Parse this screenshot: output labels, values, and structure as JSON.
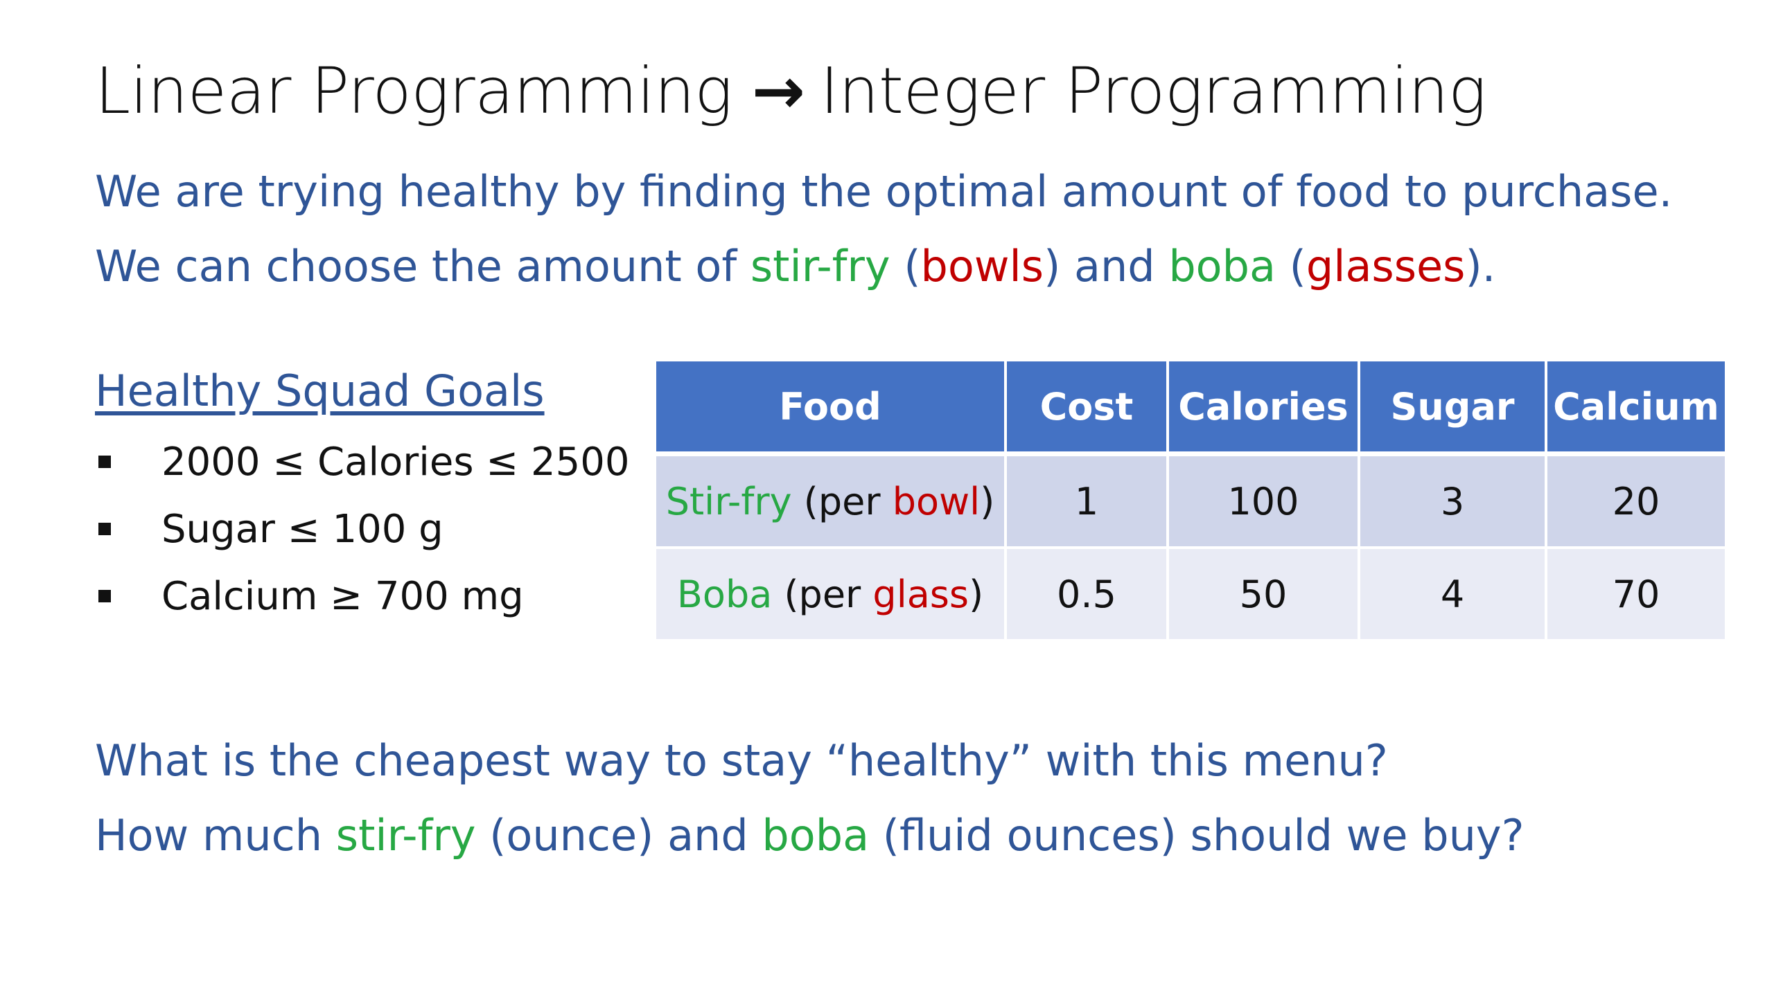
{
  "slide": {
    "title": {
      "left": "Linear Programming",
      "arrow": "→",
      "right": "Integer Programming"
    },
    "intro": {
      "line1": "We are trying healthy by finding the optimal amount of food to purchase.",
      "line2": {
        "a": "We can choose the amount of ",
        "stirfry": "stir-fry",
        "b": " (",
        "bowls": "bowls",
        "c": ") and ",
        "boba": "boba",
        "d": " (",
        "glasses": "glasses",
        "e": ")."
      }
    },
    "goals": {
      "heading": "Healthy Squad Goals",
      "items": [
        "2000 ≤ Calories ≤ 2500",
        "Sugar ≤ 100 g",
        "Calcium ≥ 700 mg"
      ]
    },
    "table": {
      "headers": [
        "Food",
        "Cost",
        "Calories",
        "Sugar",
        "Calcium"
      ],
      "rows": [
        {
          "food_name": "Stir-fry",
          "food_pre": " (per ",
          "food_unit": "bowl",
          "food_post": ")",
          "cost": "1",
          "calories": "100",
          "sugar": "3",
          "calcium": "20"
        },
        {
          "food_name": "Boba",
          "food_pre": " (per ",
          "food_unit": "glass",
          "food_post": ")",
          "cost": "0.5",
          "calories": "50",
          "sugar": "4",
          "calcium": "70"
        }
      ]
    },
    "questions": {
      "q1": "What is the cheapest way to stay “healthy” with this menu?",
      "q2": {
        "a": "How much ",
        "stirfry": "stir-fry",
        "b": " (ounce) and ",
        "boba": "boba",
        "c": " (fluid ounces) should we buy?"
      }
    },
    "colors": {
      "title_text": "#111111",
      "body_blue": "#2f5597",
      "food_green": "#27a844",
      "unit_red": "#c00000",
      "table_header": "#4472c4",
      "table_row1": "#cfd5ea",
      "table_row2": "#e9ebf5"
    }
  }
}
